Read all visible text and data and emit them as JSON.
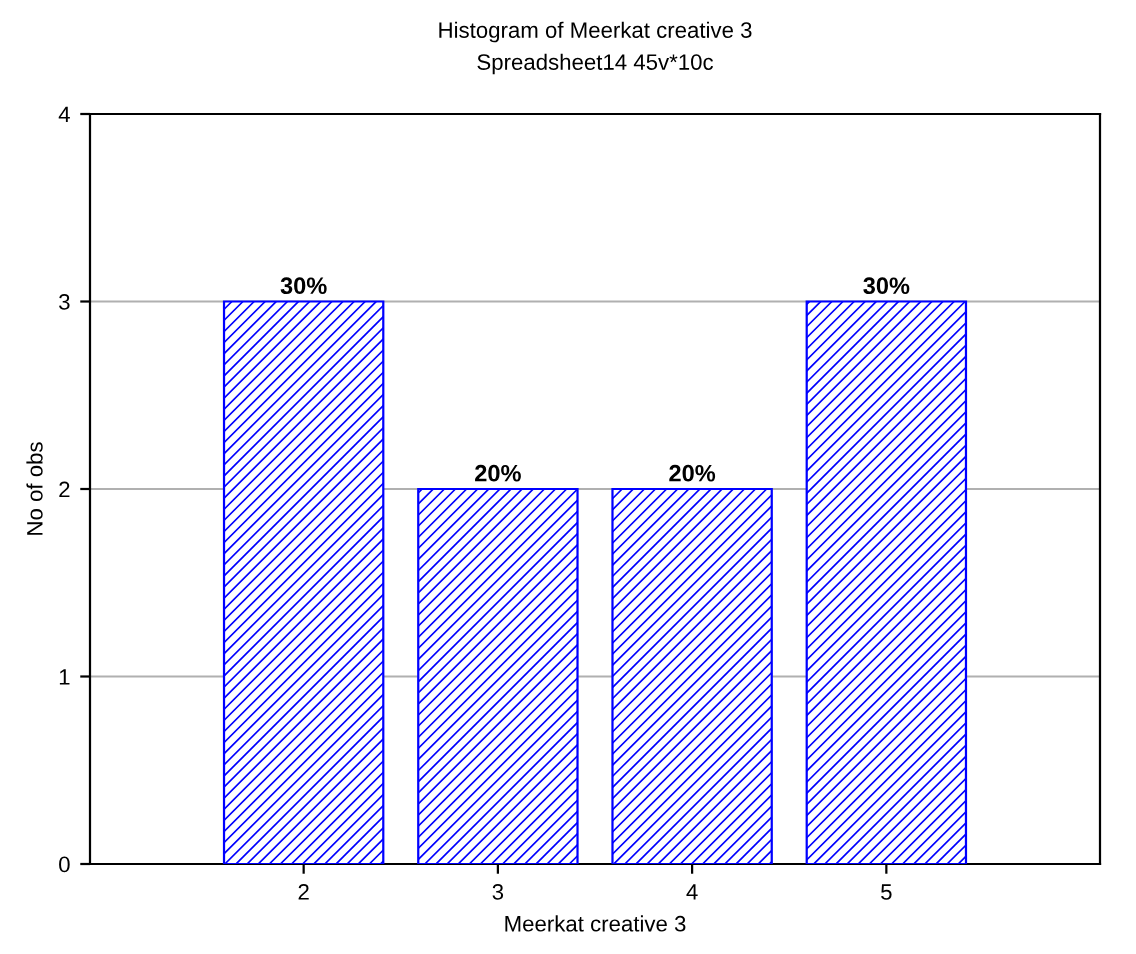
{
  "chart_data": {
    "type": "bar",
    "title": "Histogram of Meerkat creative 3",
    "subtitle": "Spreadsheet14 45v*10c",
    "xlabel": "Meerkat creative 3",
    "ylabel": "No of obs",
    "categories": [
      "2",
      "3",
      "4",
      "5"
    ],
    "values": [
      3,
      2,
      2,
      3
    ],
    "annotations": [
      {
        "text": "30%",
        "x": "2",
        "y": 3
      },
      {
        "text": "20%",
        "x": "3",
        "y": 2
      },
      {
        "text": "20%",
        "x": "4",
        "y": 2
      },
      {
        "text": "30%",
        "x": "5",
        "y": 3
      }
    ],
    "color": "#0000ff",
    "ylim": [
      0,
      4
    ],
    "yticks": [
      0,
      1,
      2,
      3,
      4
    ],
    "grid": "y"
  }
}
